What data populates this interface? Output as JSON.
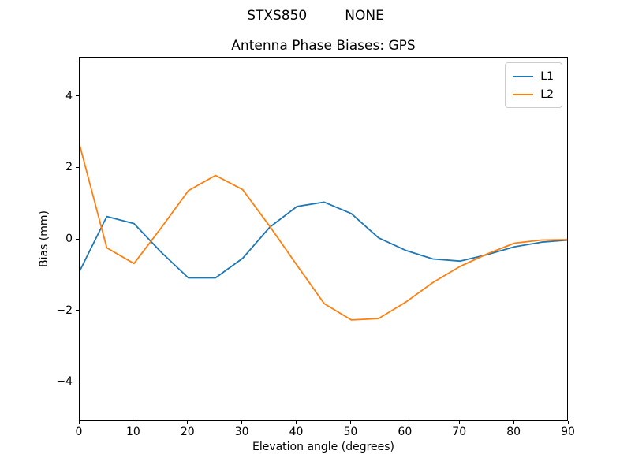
{
  "figure": {
    "suptitle_left": "STXS850",
    "suptitle_right": "NONE",
    "axes_title": "Antenna Phase Biases: GPS",
    "xlabel": "Elevation angle (degrees)",
    "ylabel": "Bias (mm)",
    "background_color": "#ffffff",
    "axes_edge_color": "#000000"
  },
  "legend": {
    "position": "upper right",
    "items": [
      {
        "label": "L1",
        "color": "#1f77b4"
      },
      {
        "label": "L2",
        "color": "#ff7f0e"
      }
    ]
  },
  "chart_data": {
    "type": "line",
    "suptitle": "STXS850         NONE",
    "title": "Antenna Phase Biases: GPS",
    "xlabel": "Elevation angle (degrees)",
    "ylabel": "Bias (mm)",
    "xlim": [
      0,
      90
    ],
    "ylim": [
      -5.1,
      5.1
    ],
    "xticks": [
      0,
      10,
      20,
      30,
      40,
      50,
      60,
      70,
      80,
      90
    ],
    "yticks": [
      -4,
      -2,
      0,
      2,
      4
    ],
    "grid": false,
    "legend_position": "upper right",
    "x": [
      0,
      5,
      10,
      15,
      20,
      25,
      30,
      35,
      40,
      45,
      50,
      55,
      60,
      65,
      70,
      75,
      80,
      85,
      90
    ],
    "series": [
      {
        "name": "L1",
        "color": "#1f77b4",
        "values": [
          -0.88,
          0.65,
          0.45,
          -0.35,
          -1.07,
          -1.07,
          -0.52,
          0.35,
          0.93,
          1.05,
          0.73,
          0.05,
          -0.3,
          -0.54,
          -0.6,
          -0.42,
          -0.2,
          -0.07,
          -0.01
        ]
      },
      {
        "name": "L2",
        "color": "#ff7f0e",
        "values": [
          2.65,
          -0.23,
          -0.67,
          0.33,
          1.37,
          1.8,
          1.4,
          0.37,
          -0.72,
          -1.79,
          -2.25,
          -2.21,
          -1.75,
          -1.2,
          -0.75,
          -0.4,
          -0.1,
          -0.01,
          0.0
        ]
      }
    ]
  }
}
